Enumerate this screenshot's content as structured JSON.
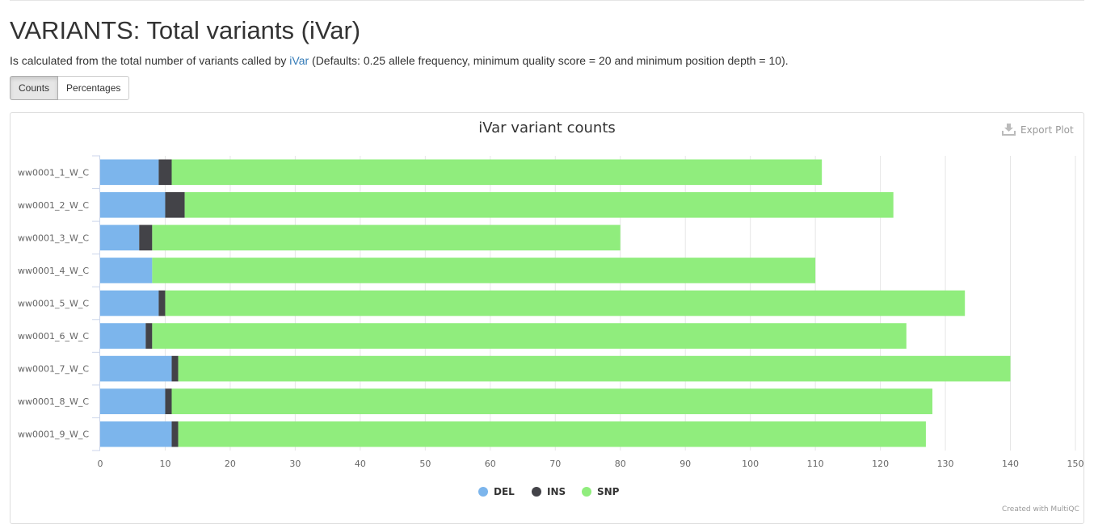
{
  "page": {
    "title": "VARIANTS: Total variants (iVar)",
    "desc_prefix": "Is calculated from the total number of variants called by ",
    "desc_link": "iVar",
    "desc_suffix": " (Defaults: 0.25 allele frequency, minimum quality score = 20 and minimum position depth = 10)."
  },
  "toggle": {
    "counts_label": "Counts",
    "percentages_label": "Percentages",
    "selected": "Counts"
  },
  "export_label": "Export Plot",
  "credit": "Created with MultiQC",
  "colors": {
    "DEL": "#7cb5ec",
    "INS": "#434348",
    "SNP": "#90ed7d"
  },
  "chart_data": {
    "type": "bar",
    "orientation": "horizontal",
    "stacked": true,
    "title": "iVar variant counts",
    "categories": [
      "ww0001_1_W_C",
      "ww0001_2_W_C",
      "ww0001_3_W_C",
      "ww0001_4_W_C",
      "ww0001_5_W_C",
      "ww0001_6_W_C",
      "ww0001_7_W_C",
      "ww0001_8_W_C",
      "ww0001_9_W_C"
    ],
    "series": [
      {
        "name": "DEL",
        "values": [
          9,
          10,
          6,
          8,
          9,
          7,
          11,
          10,
          11
        ]
      },
      {
        "name": "INS",
        "values": [
          2,
          3,
          2,
          0,
          1,
          1,
          1,
          1,
          1
        ]
      },
      {
        "name": "SNP",
        "values": [
          100,
          109,
          72,
          102,
          123,
          116,
          128,
          117,
          115
        ]
      }
    ],
    "xlim": [
      0,
      150
    ],
    "xticks": [
      0,
      10,
      20,
      30,
      40,
      50,
      60,
      70,
      80,
      90,
      100,
      110,
      120,
      130,
      140,
      150
    ],
    "grid": true,
    "legend": "bottom-center"
  }
}
